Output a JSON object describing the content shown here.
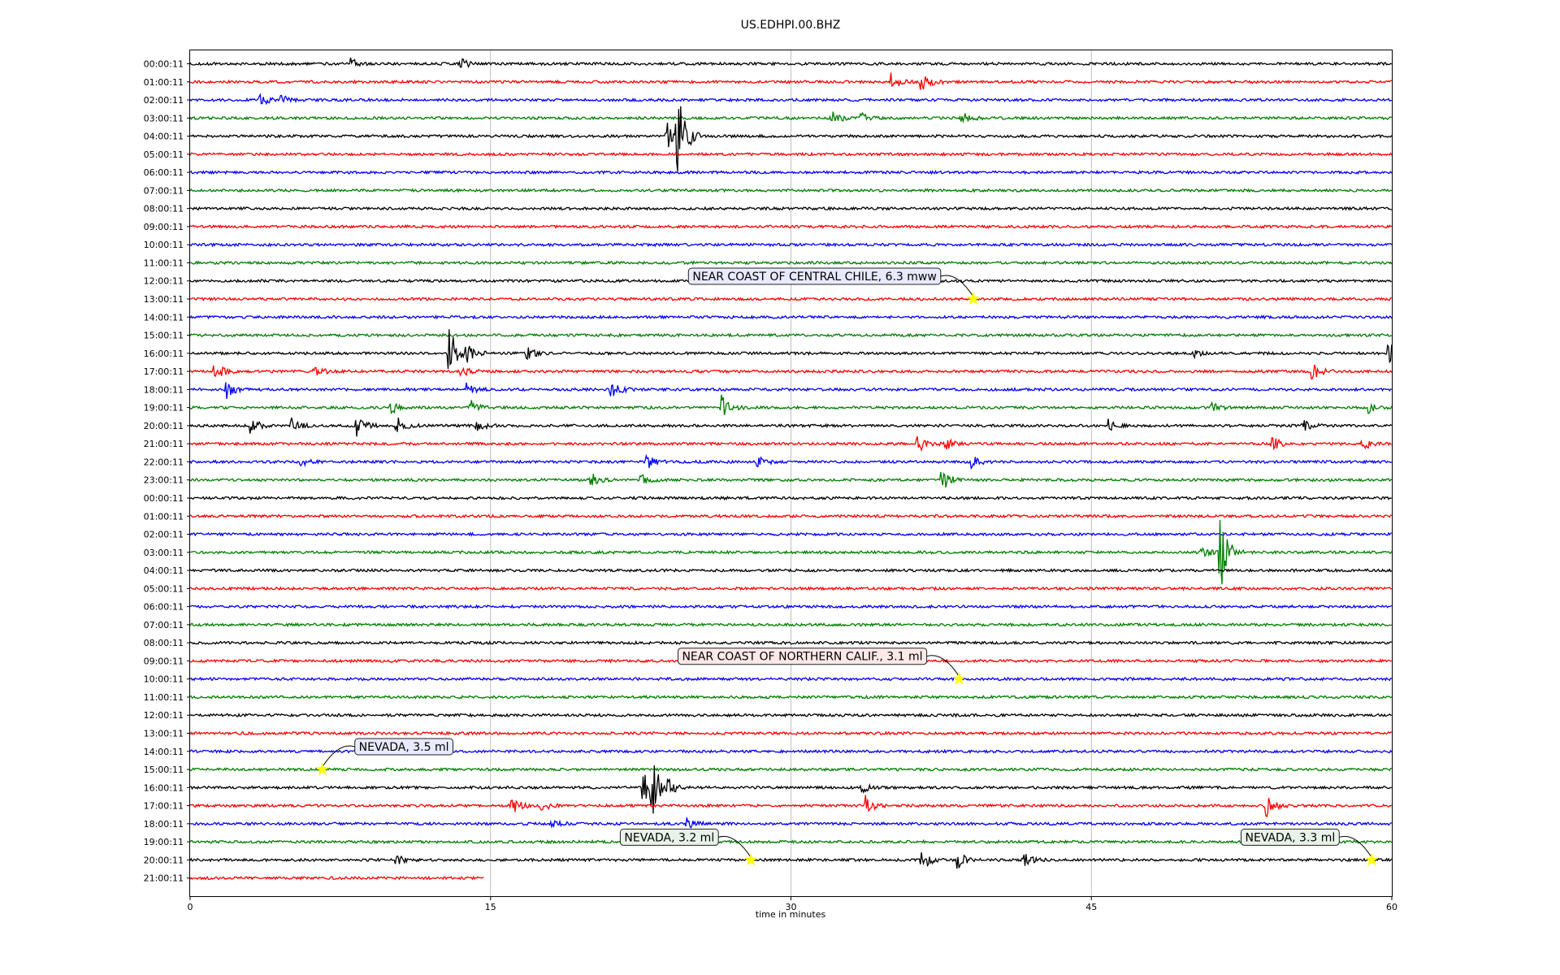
{
  "chart_data": {
    "type": "line",
    "title": "US.EDHPI.00.BHZ",
    "xlabel": "time in minutes",
    "ylabel": "",
    "xlim": [
      0,
      60
    ],
    "xticks": [
      0,
      15,
      30,
      45,
      60
    ],
    "grid": "vertical lines at x ticks",
    "trace_colors": [
      "#000000",
      "#ff0000",
      "#0000ff",
      "#007f00"
    ],
    "row_labels": [
      "00:00:11",
      "01:00:11",
      "02:00:11",
      "03:00:11",
      "04:00:11",
      "05:00:11",
      "06:00:11",
      "07:00:11",
      "08:00:11",
      "09:00:11",
      "10:00:11",
      "11:00:11",
      "12:00:11",
      "13:00:11",
      "14:00:11",
      "15:00:11",
      "16:00:11",
      "17:00:11",
      "18:00:11",
      "19:00:11",
      "20:00:11",
      "21:00:11",
      "22:00:11",
      "23:00:11",
      "00:00:11",
      "01:00:11",
      "02:00:11",
      "03:00:11",
      "04:00:11",
      "05:00:11",
      "06:00:11",
      "07:00:11",
      "08:00:11",
      "09:00:11",
      "10:00:11",
      "11:00:11",
      "12:00:11",
      "13:00:11",
      "14:00:11",
      "15:00:11",
      "16:00:11",
      "17:00:11",
      "18:00:11",
      "19:00:11",
      "20:00:11",
      "21:00:11"
    ],
    "last_row_end_minutes": 14.7,
    "bursts": [
      {
        "row": 0,
        "t": 8.0,
        "amp": 0.35
      },
      {
        "row": 0,
        "t": 13.5,
        "amp": 0.3
      },
      {
        "row": 1,
        "t": 35.0,
        "amp": 0.55
      },
      {
        "row": 1,
        "t": 36.5,
        "amp": 0.8
      },
      {
        "row": 2,
        "t": 3.5,
        "amp": 0.35
      },
      {
        "row": 2,
        "t": 4.5,
        "amp": 0.3
      },
      {
        "row": 3,
        "t": 32.0,
        "amp": 0.5
      },
      {
        "row": 3,
        "t": 33.5,
        "amp": 0.35
      },
      {
        "row": 3,
        "t": 38.5,
        "amp": 0.45
      },
      {
        "row": 4,
        "t": 23.8,
        "amp": 0.9
      },
      {
        "row": 4,
        "t": 24.3,
        "amp": 2.8
      },
      {
        "row": 16,
        "t": 12.9,
        "amp": 1.6
      },
      {
        "row": 16,
        "t": 13.8,
        "amp": 0.6
      },
      {
        "row": 16,
        "t": 16.8,
        "amp": 0.4
      },
      {
        "row": 16,
        "t": 50.0,
        "amp": 0.3
      },
      {
        "row": 16,
        "t": 59.8,
        "amp": 0.9
      },
      {
        "row": 17,
        "t": 1.2,
        "amp": 0.7
      },
      {
        "row": 17,
        "t": 6.2,
        "amp": 0.4
      },
      {
        "row": 17,
        "t": 13.5,
        "amp": 0.35
      },
      {
        "row": 17,
        "t": 56.0,
        "amp": 0.5
      },
      {
        "row": 18,
        "t": 1.8,
        "amp": 0.5
      },
      {
        "row": 18,
        "t": 13.8,
        "amp": 0.35
      },
      {
        "row": 18,
        "t": 21.0,
        "amp": 0.6
      },
      {
        "row": 19,
        "t": 10.0,
        "amp": 0.35
      },
      {
        "row": 19,
        "t": 14.0,
        "amp": 0.4
      },
      {
        "row": 19,
        "t": 26.5,
        "amp": 0.7
      },
      {
        "row": 19,
        "t": 51.0,
        "amp": 0.3
      },
      {
        "row": 19,
        "t": 58.8,
        "amp": 0.35
      },
      {
        "row": 20,
        "t": 3.0,
        "amp": 0.5
      },
      {
        "row": 20,
        "t": 5.0,
        "amp": 0.5
      },
      {
        "row": 20,
        "t": 8.3,
        "amp": 0.6
      },
      {
        "row": 20,
        "t": 10.3,
        "amp": 0.5
      },
      {
        "row": 20,
        "t": 14.3,
        "amp": 0.35
      },
      {
        "row": 20,
        "t": 45.8,
        "amp": 0.35
      },
      {
        "row": 20,
        "t": 55.5,
        "amp": 0.4
      },
      {
        "row": 21,
        "t": 36.3,
        "amp": 0.6
      },
      {
        "row": 21,
        "t": 37.7,
        "amp": 0.35
      },
      {
        "row": 21,
        "t": 54.0,
        "amp": 0.4
      },
      {
        "row": 21,
        "t": 58.5,
        "amp": 0.4
      },
      {
        "row": 22,
        "t": 5.5,
        "amp": 0.3
      },
      {
        "row": 22,
        "t": 22.8,
        "amp": 0.45
      },
      {
        "row": 22,
        "t": 28.3,
        "amp": 0.35
      },
      {
        "row": 22,
        "t": 39.0,
        "amp": 0.35
      },
      {
        "row": 23,
        "t": 20.0,
        "amp": 0.45
      },
      {
        "row": 23,
        "t": 22.5,
        "amp": 0.35
      },
      {
        "row": 23,
        "t": 37.5,
        "amp": 0.65
      },
      {
        "row": 27,
        "t": 50.5,
        "amp": 0.4
      },
      {
        "row": 27,
        "t": 51.4,
        "amp": 2.6
      },
      {
        "row": 40,
        "t": 22.6,
        "amp": 1.0
      },
      {
        "row": 40,
        "t": 23.0,
        "amp": 1.8
      },
      {
        "row": 40,
        "t": 23.8,
        "amp": 0.6
      },
      {
        "row": 40,
        "t": 33.5,
        "amp": 0.3
      },
      {
        "row": 41,
        "t": 16.0,
        "amp": 0.8
      },
      {
        "row": 41,
        "t": 17.5,
        "amp": 0.35
      },
      {
        "row": 41,
        "t": 33.7,
        "amp": 0.6
      },
      {
        "row": 41,
        "t": 53.7,
        "amp": 0.8
      },
      {
        "row": 42,
        "t": 18.0,
        "amp": 0.35
      },
      {
        "row": 42,
        "t": 24.8,
        "amp": 0.3
      },
      {
        "row": 44,
        "t": 10.2,
        "amp": 0.35
      },
      {
        "row": 44,
        "t": 36.5,
        "amp": 0.7
      },
      {
        "row": 44,
        "t": 38.3,
        "amp": 0.5
      },
      {
        "row": 44,
        "t": 41.6,
        "amp": 0.4
      }
    ],
    "events": [
      {
        "label": "NEAR COAST OF CENTRAL CHILE, 6.3 mww",
        "row": 13,
        "t": 39.1,
        "box_color": "#e8eaff"
      },
      {
        "label": "NEAR COAST OF NORTHERN CALIF., 3.1 ml",
        "row": 34,
        "t": 38.4,
        "box_color": "#ffe8e8"
      },
      {
        "label": "NEVADA, 3.5 ml",
        "row": 39,
        "t": 6.6,
        "box_color": "#e8eaff"
      },
      {
        "label": "NEVADA, 3.2 ml",
        "row": 44,
        "t": 28.0,
        "box_color": "#e8f2e8"
      },
      {
        "label": "NEVADA, 3.3 ml",
        "row": 44,
        "t": 59.0,
        "box_color": "#e8f2e8"
      }
    ]
  }
}
